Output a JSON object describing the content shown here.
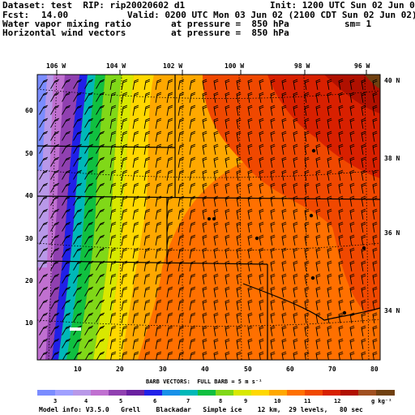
{
  "header": {
    "dataset_line": "Dataset: test  RIP: rip20020602 d1",
    "init_line": "Init: 1200 UTC Sun 02 Jun 02",
    "fcst_label": "Fcst:",
    "fcst_value": "14.00",
    "valid_line": "Valid: 0200 UTC Mon 03 Jun 02 (2100 CDT Sun 02 Jun 02)",
    "field1_name": "Water vapor mixing ratio",
    "field1_level": "at pressure =  850 hPa",
    "field1_sm": "sm= 1",
    "field2_name": "Horizontal wind vectors",
    "field2_level": "at pressure =  850 hPa"
  },
  "map": {
    "lon_labels": [
      "106 W",
      "104 W",
      "102 W",
      "100 W",
      "98 W",
      "96 W"
    ],
    "lat_labels": [
      "40 N",
      "38 N",
      "36 N",
      "34 N"
    ],
    "x_ticks": [
      "10",
      "20",
      "30",
      "40",
      "50",
      "60",
      "70",
      "80"
    ],
    "y_ticks": [
      "10",
      "20",
      "30",
      "40",
      "50",
      "60"
    ]
  },
  "legend": {
    "barb_title": "BARB VECTORS:  FULL BARB = 5 m s⁻¹",
    "ticks": [
      "3",
      "4",
      "5",
      "6",
      "7",
      "8",
      "9",
      "10",
      "11",
      "12"
    ],
    "unit": "g kg⁻¹",
    "colors": [
      "#7a8cff",
      "#a0a0ff",
      "#b898e8",
      "#c070d0",
      "#9040b0",
      "#6a20a0",
      "#2020e8",
      "#1890e8",
      "#00b8b8",
      "#10c040",
      "#80d818",
      "#d8e800",
      "#ffd800",
      "#ffa800",
      "#ff7000",
      "#f04800",
      "#d82000",
      "#b01000",
      "#a05020",
      "#704010"
    ]
  },
  "footer": "Model info: V3.5.0   Grell    Blackadar   Simple ice    12 km,  29 levels,   80 sec"
}
